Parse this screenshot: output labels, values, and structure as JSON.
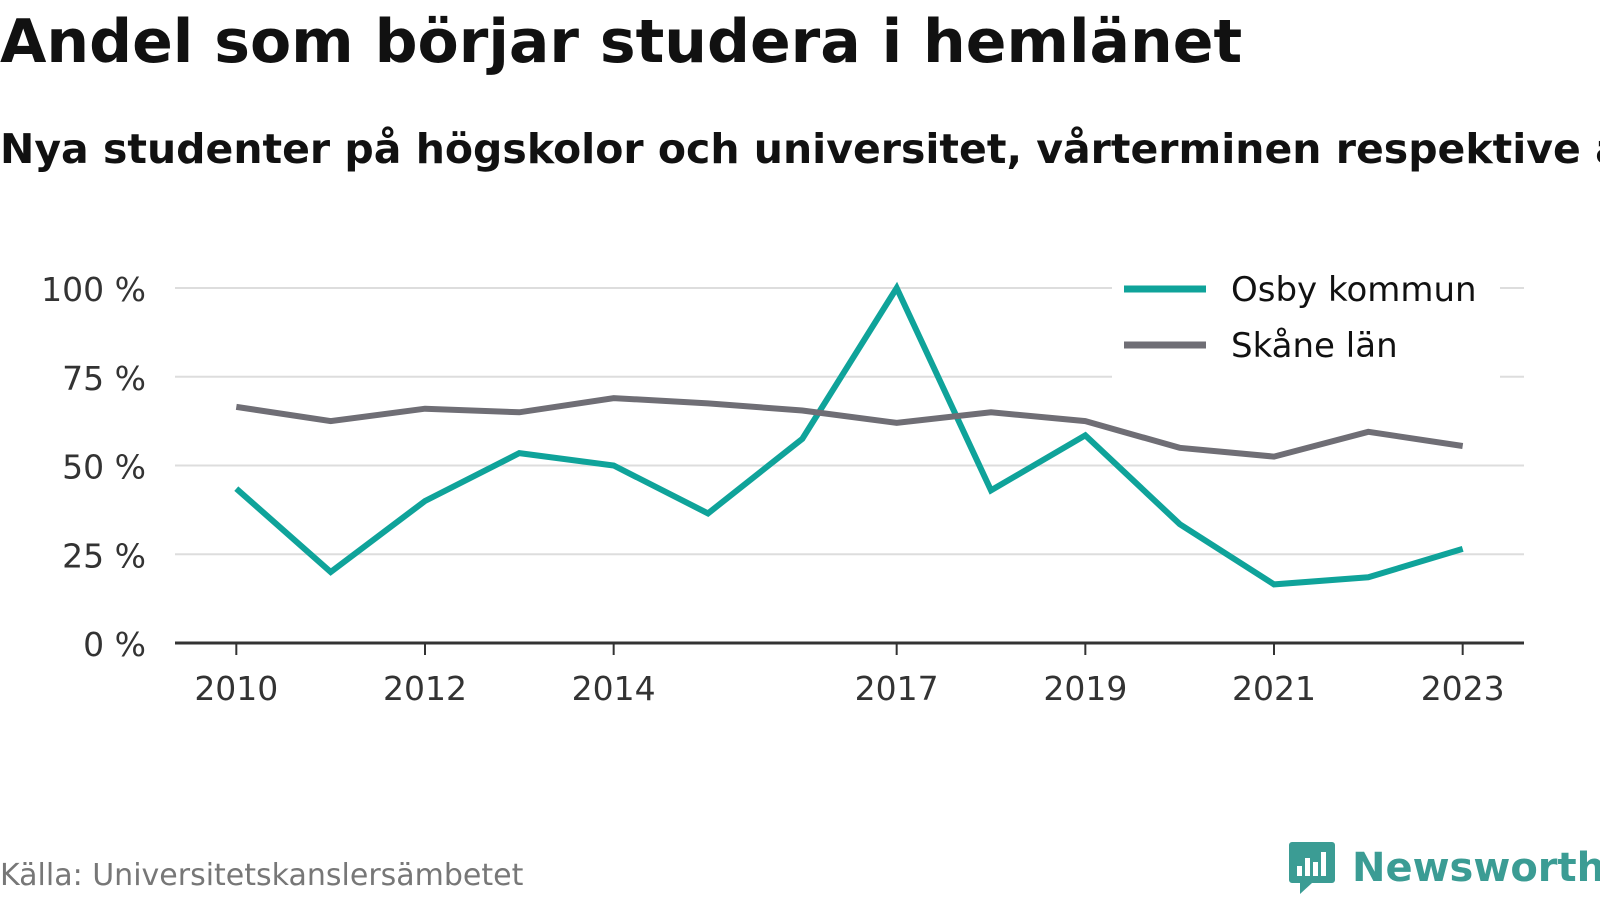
{
  "header": {
    "title": "Andel som börjar studera i hemlänet",
    "subtitle": "Nya studenter på högskolor och universitet, vårterminen respektive år"
  },
  "footer": {
    "source": "Källa: Universitetskanslersämbetet",
    "brand": "Newsworthy",
    "brand_icon": "bar-chart-logo-icon"
  },
  "colors": {
    "osby": "#0fa39a",
    "skane": "#6f6e75",
    "grid": "#dddddd",
    "axis": "#333333",
    "brand": "#3b9c94"
  },
  "chart_data": {
    "type": "line",
    "title": "Andel som börjar studera i hemlänet",
    "subtitle": "Nya studenter på högskolor och universitet, vårterminen respektive år",
    "x": [
      2010,
      2011,
      2012,
      2013,
      2014,
      2015,
      2016,
      2017,
      2018,
      2019,
      2020,
      2021,
      2022,
      2023
    ],
    "x_ticks": [
      2010,
      2012,
      2014,
      2017,
      2019,
      2021,
      2023
    ],
    "x_tick_labels": [
      "2010",
      "2012",
      "2014",
      "2017",
      "2019",
      "2021",
      "2023"
    ],
    "y_ticks": [
      0,
      25,
      50,
      75,
      100
    ],
    "y_tick_labels": [
      "0 %",
      "25 %",
      "50 %",
      "75 %",
      "100 %"
    ],
    "ylim": [
      0,
      100
    ],
    "xlim": [
      2009.35,
      2023.65
    ],
    "grid": true,
    "legend_position": "top-right",
    "series": [
      {
        "name": "Osby kommun",
        "color": "#0fa39a",
        "values": [
          43.5,
          20,
          40,
          53.5,
          50,
          36.5,
          57.5,
          100,
          43,
          58.5,
          33.5,
          16.5,
          18.5,
          26.5
        ]
      },
      {
        "name": "Skåne län",
        "color": "#6f6e75",
        "values": [
          66.5,
          62.5,
          66,
          65,
          69,
          67.5,
          65.5,
          62,
          65,
          62.5,
          55,
          52.5,
          59.5,
          55.5
        ]
      }
    ]
  }
}
